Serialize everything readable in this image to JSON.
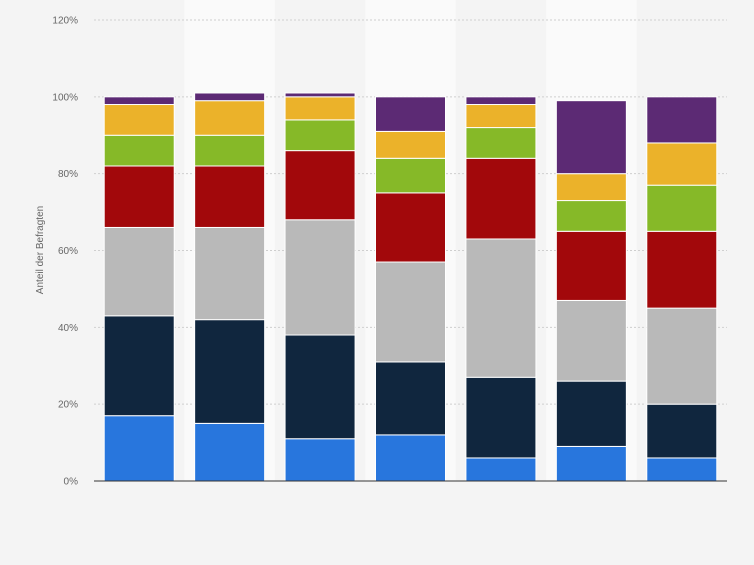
{
  "chart_data": {
    "type": "bar",
    "stacked": true,
    "ylabel": "Anteil der Befragten",
    "ylim": [
      0,
      120
    ],
    "yticks": [
      0,
      20,
      40,
      60,
      80,
      100,
      120
    ],
    "ytick_labels": [
      "0%",
      "20%",
      "40%",
      "60%",
      "80%",
      "100%",
      "120%"
    ],
    "grid": true,
    "categories": [
      "",
      "",
      "",
      "",
      "",
      "",
      ""
    ],
    "series": [
      {
        "color": "#2876dd",
        "values": [
          17,
          15,
          11,
          12,
          6,
          9,
          6
        ]
      },
      {
        "color": "#10263e",
        "values": [
          26,
          27,
          27,
          19,
          21,
          17,
          14
        ]
      },
      {
        "color": "#b9b9b9",
        "values": [
          23,
          24,
          30,
          26,
          36,
          21,
          25
        ]
      },
      {
        "color": "#a2080b",
        "values": [
          16,
          16,
          18,
          18,
          21,
          18,
          20
        ]
      },
      {
        "color": "#86b928",
        "values": [
          8,
          8,
          8,
          9,
          8,
          8,
          12
        ]
      },
      {
        "color": "#ebb22a",
        "values": [
          8,
          9,
          6,
          7,
          6,
          7,
          11
        ]
      },
      {
        "color": "#5c2a74",
        "values": [
          2,
          2,
          1,
          9,
          2,
          19,
          12
        ]
      }
    ]
  }
}
